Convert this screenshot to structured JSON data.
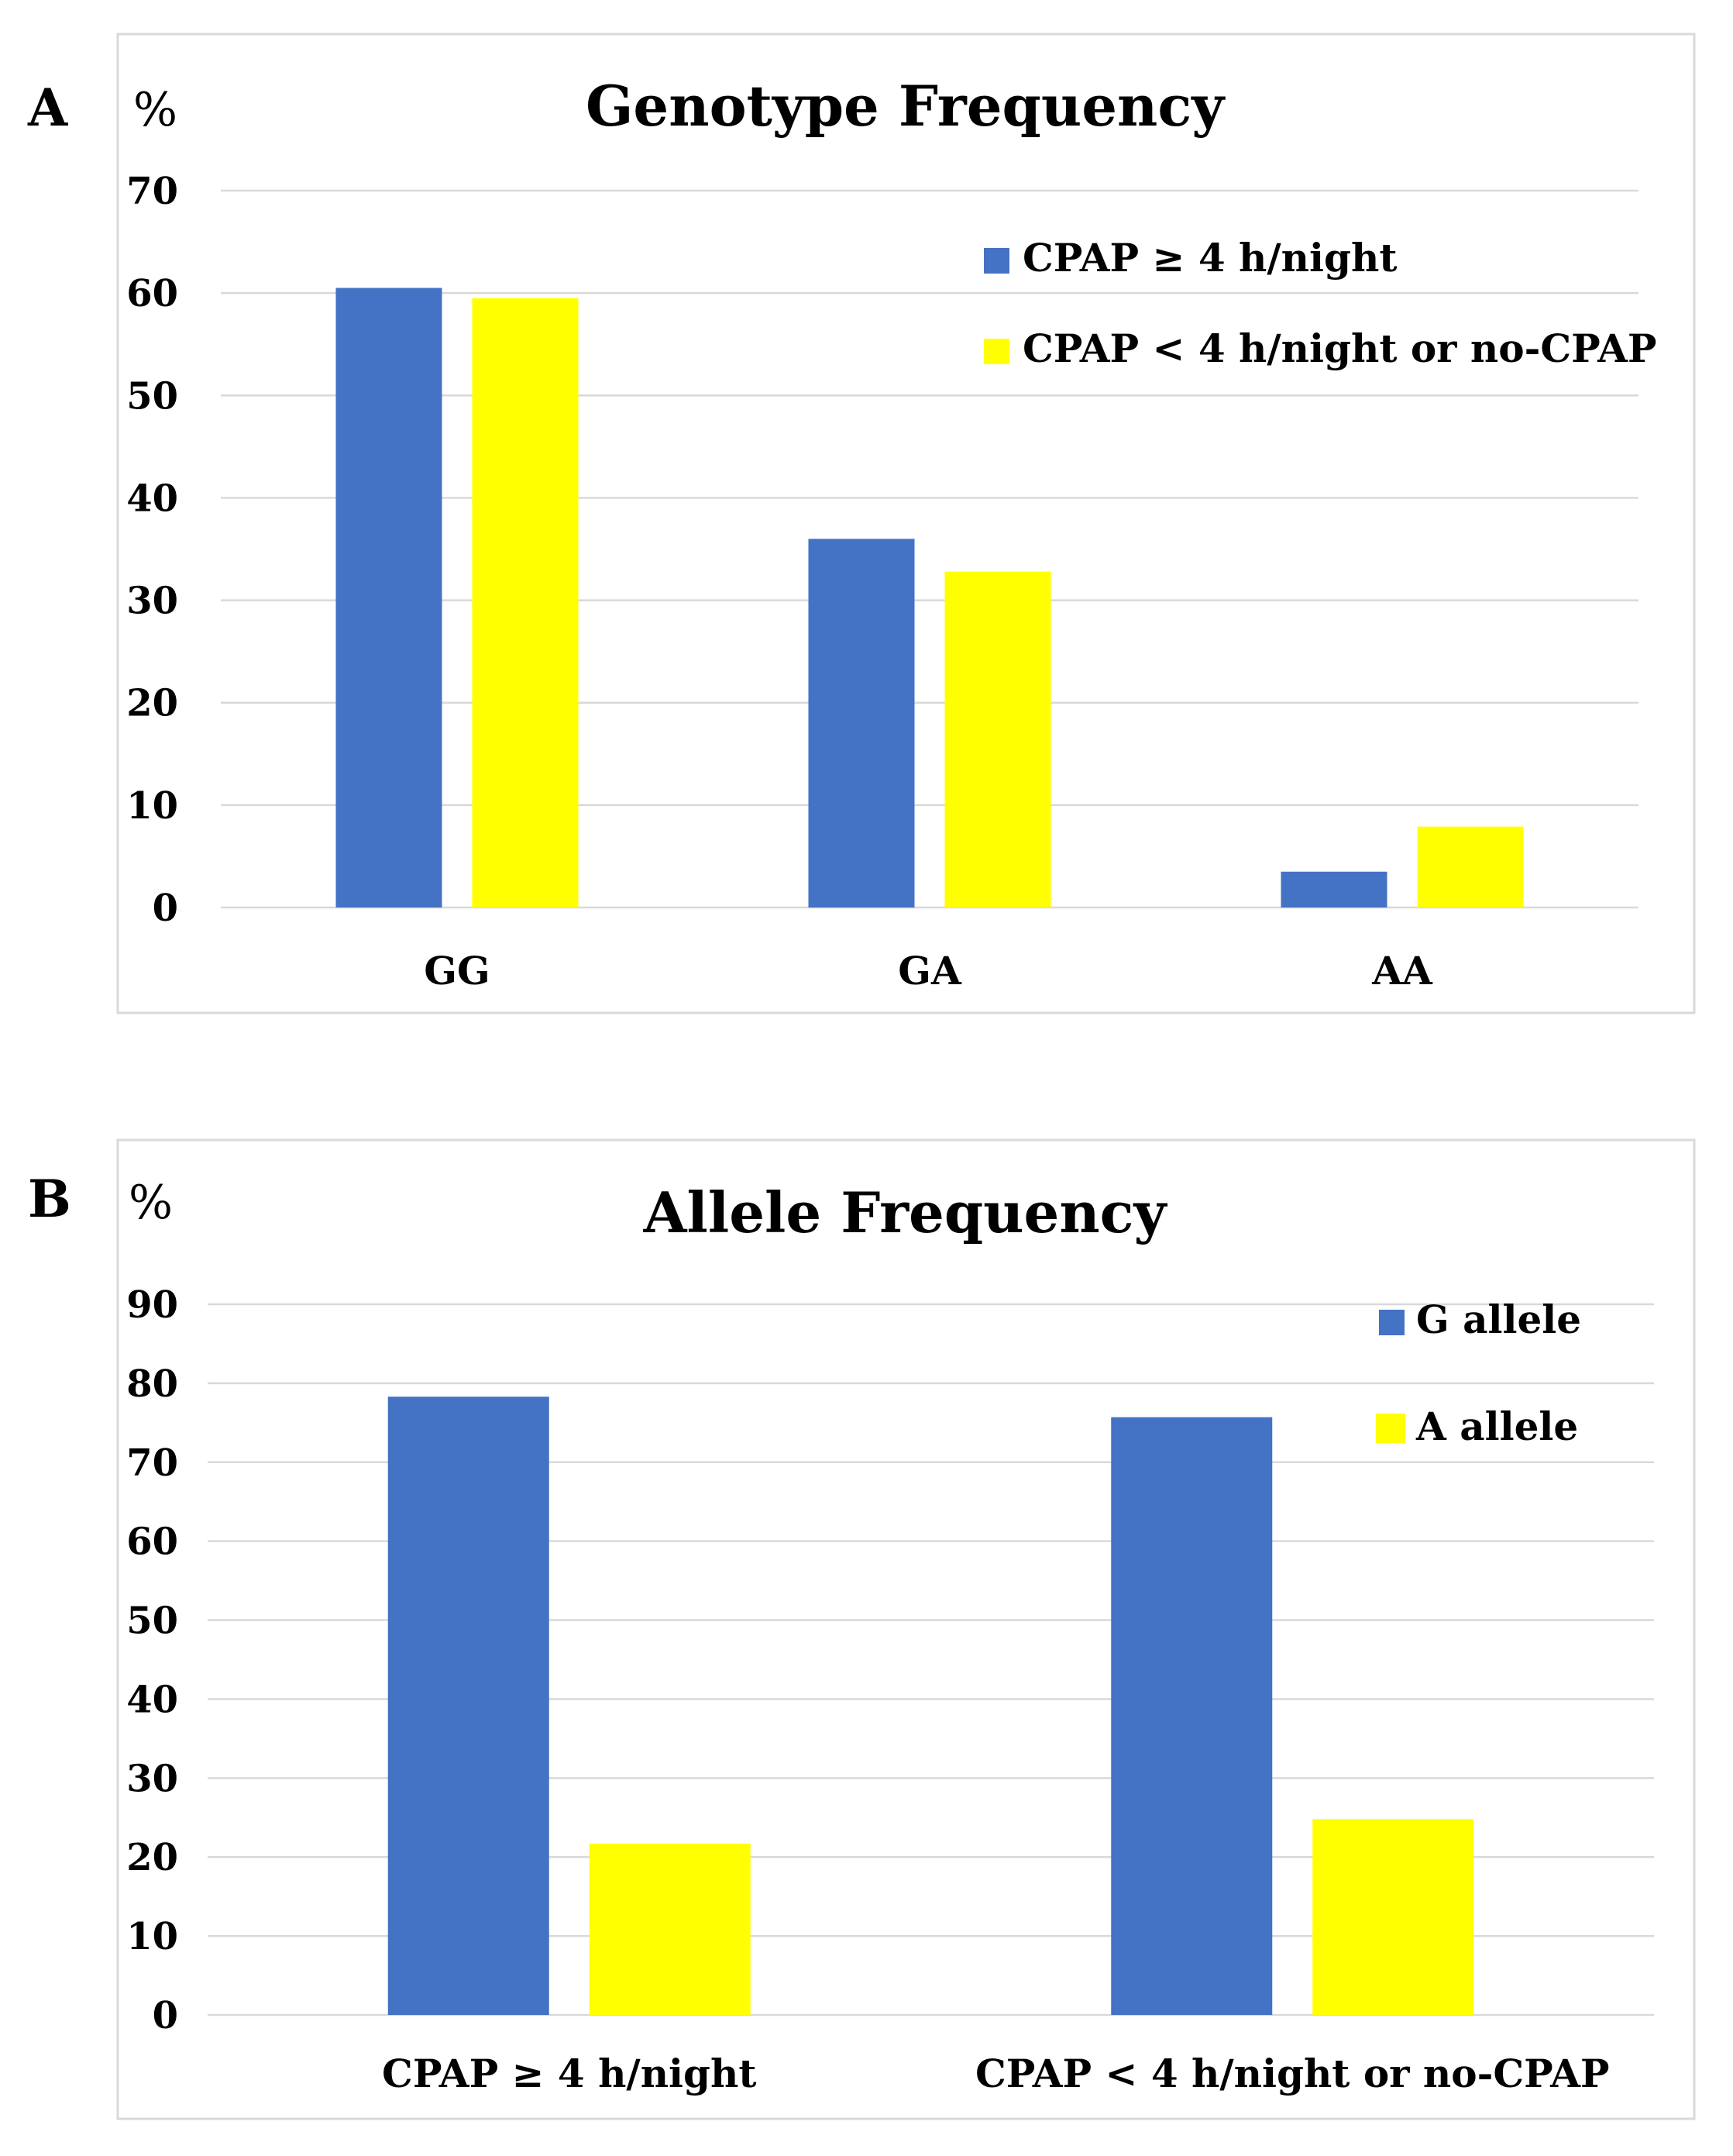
{
  "colors": {
    "series_blue": "#4472c4",
    "series_yellow": "#ffff00"
  },
  "chart_data": [
    {
      "panel": "A",
      "unit": "%",
      "type": "bar",
      "title": "Genotype Frequency",
      "categories": [
        "GG",
        "GA",
        "AA"
      ],
      "series": [
        {
          "name": "CPAP ≥ 4 h/night",
          "color": "#4472c4",
          "values": [
            60.5,
            36,
            3.5
          ]
        },
        {
          "name": "CPAP < 4 h/night or no-CPAP",
          "color": "#ffff00",
          "values": [
            59.5,
            32.8,
            7.9
          ]
        }
      ],
      "ylim": [
        0,
        70
      ],
      "yticks": [
        "0",
        "10",
        "20",
        "30",
        "40",
        "50",
        "60",
        "70"
      ],
      "grid": true,
      "legend": "top-right"
    },
    {
      "panel": "B",
      "unit": "%",
      "type": "bar",
      "title": "Allele Frequency",
      "categories": [
        "CPAP ≥ 4 h/night",
        "CPAP < 4 h/night or no-CPAP"
      ],
      "series": [
        {
          "name": "G allele",
          "color": "#4472c4",
          "values": [
            78.3,
            75.7
          ]
        },
        {
          "name": "A allele",
          "color": "#ffff00",
          "values": [
            21.7,
            24.8
          ]
        }
      ],
      "ylim": [
        0,
        90
      ],
      "yticks": [
        "0",
        "10",
        "20",
        "30",
        "40",
        "50",
        "60",
        "70",
        "80",
        "90"
      ],
      "grid": true,
      "legend": "top-right"
    }
  ]
}
